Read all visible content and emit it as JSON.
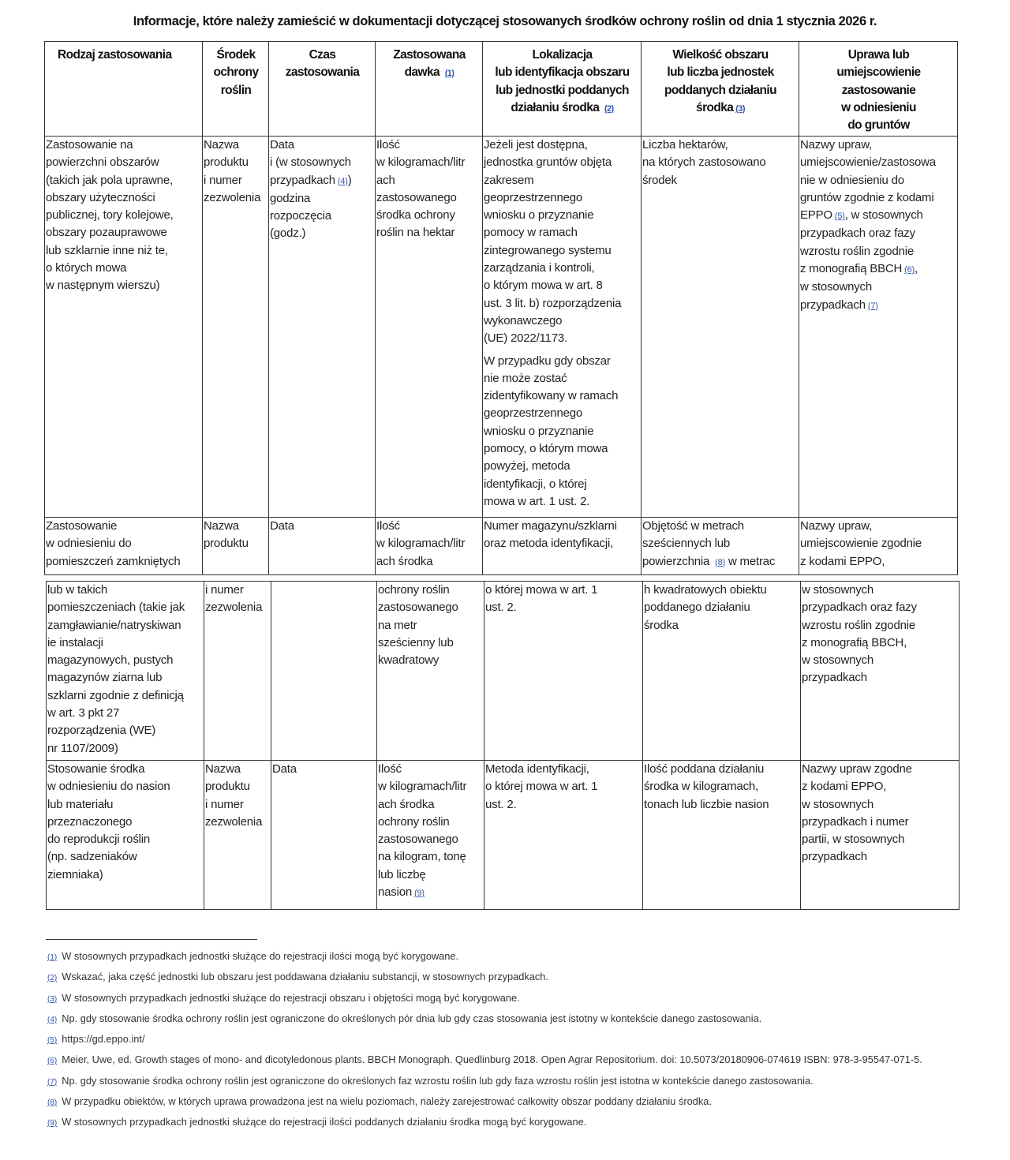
{
  "title": "Informacje, które należy zamieścić w dokumentacji dotyczącej stosowanych środków ochrony roślin od dnia 1 stycznia 2026 r.",
  "headers": [
    [
      [
        "Rodzaj zastosowania"
      ]
    ],
    [
      [
        "Środek\nochrony\nroślin"
      ]
    ],
    [
      [
        "Czas\nzastosowania"
      ]
    ],
    [
      [
        "Zastosowana\ndawka ",
        {
          "ref": "1"
        }
      ]
    ],
    [
      [
        "Lokalizacja\nlub identyfikacja obszaru\nlub jednostki poddanych\ndziałaniu środka ",
        {
          "ref": "2"
        }
      ]
    ],
    [
      [
        "Wielkość obszaru\nlub liczba jednostek\npoddanych działaniu\nśrodka",
        {
          "ref": "3"
        }
      ]
    ],
    [
      [
        "Uprawa lub\numiejscowienie\nzastosowanie\nw odniesieniu\ndo gruntów"
      ]
    ]
  ],
  "table1_rows": [
    [
      [
        [
          "Zastosowanie na\npowierzchni obszarów\n(takich jak pola uprawne,\nobszary użyteczności\npublicznej, tory kolejowe,\nobszary pozauprawowe\nlub szklarnie inne niż te,\no których mowa\nw następnym wierszu)"
        ]
      ],
      [
        [
          "Nazwa\nproduktu\ni numer\nzezwolenia"
        ]
      ],
      [
        [
          "Data\ni (w stosownych\nprzypadkach",
          {
            "ref": "4"
          },
          ")\ngodzina\nrozpoczęcia\n(godz.)"
        ]
      ],
      [
        [
          "Ilość\nw kilogramach/litr\nach\nzastosowanego\nśrodka ochrony\nroślin na hektar"
        ]
      ],
      [
        [
          "Jeżeli jest dostępna,\njednostka gruntów objęta\nzakresem\ngeoprzestrzennego\nwniosku o przyznanie\npomocy w ramach\nzintegrowanego systemu\nzarządzania i kontroli,\no którym mowa w art. 8\nust. 3 lit. b) rozporządzenia\nwykonawczego\n(UE) 2022/1173."
        ],
        [
          "W przypadku gdy obszar\nnie może zostać\nzidentyfikowany w ramach\ngeoprzestrzennego\nwniosku o przyznanie\npomocy, o którym mowa\npowyżej, metoda\nidentyfikacji, o której\nmowa w art. 1 ust. 2."
        ]
      ],
      [
        [
          "Liczba hektarów,\nna których zastosowano\nśrodek"
        ]
      ],
      [
        [
          "Nazwy upraw,\numiejscowienie/zastosowa\nnie w odniesieniu do\ngruntów zgodnie z kodami\nEPPO",
          {
            "ref": "5"
          },
          ", w stosownych\nprzypadkach oraz fazy\nwzrostu roślin zgodnie\nz monografią BBCH",
          {
            "ref": "6"
          },
          ",\nw stosownych\nprzypadkach",
          {
            "ref": "7"
          }
        ]
      ]
    ],
    [
      [
        [
          "Zastosowanie\nw odniesieniu do\npomieszczeń zamkniętych"
        ]
      ],
      [
        [
          "Nazwa\nproduktu"
        ]
      ],
      [
        [
          "Data"
        ]
      ],
      [
        [
          "Ilość\nw kilogramach/litr\nach środka"
        ]
      ],
      [
        [
          "Numer magazynu/szklarni\noraz metoda identyfikacji,"
        ]
      ],
      [
        [
          "Objętość w metrach\nsześciennych lub\npowierzchnia ",
          {
            "ref": "8"
          },
          " w metrac"
        ]
      ],
      [
        [
          "Nazwy upraw,\numiejscowienie zgodnie\nz kodami EPPO,"
        ]
      ]
    ]
  ],
  "table2_rows": [
    [
      [
        [
          "lub w takich\npomieszczeniach (takie jak\nzamgławianie/natryskiwan\nie instalacji\nmagazynowych, pustych\nmagazynów ziarna lub\nszklarni zgodnie z definicją\nw art. 3 pkt 27\nrozporządzenia (WE)\nnr 1107/2009)"
        ]
      ],
      [
        [
          "i numer\nzezwolenia"
        ]
      ],
      [
        [
          ""
        ]
      ],
      [
        [
          "ochrony roślin\nzastosowanego\nna metr\nsześcienny lub\nkwadratowy"
        ]
      ],
      [
        [
          "o której mowa w art. 1\nust. 2."
        ]
      ],
      [
        [
          "h kwadratowych obiektu\npoddanego działaniu\nśrodka"
        ]
      ],
      [
        [
          "w stosownych\nprzypadkach oraz fazy\nwzrostu roślin zgodnie\nz monografią BBCH,\nw stosownych\nprzypadkach"
        ]
      ]
    ],
    [
      [
        [
          "Stosowanie środka\nw odniesieniu do nasion\nlub materiału\nprzeznaczonego\ndo reprodukcji roślin\n(np. sadzeniaków\nziemniaka)"
        ]
      ],
      [
        [
          "Nazwa\nproduktu\ni numer\nzezwolenia"
        ]
      ],
      [
        [
          "Data"
        ]
      ],
      [
        [
          "Ilość\nw kilogramach/litr\nach środka\nochrony roślin\nzastosowanego\nna kilogram, tonę\nlub liczbę\nnasion",
          {
            "ref": "9"
          }
        ]
      ],
      [
        [
          "Metoda identyfikacji,\no której mowa w art. 1\nust. 2."
        ]
      ],
      [
        [
          "Ilość poddana działaniu\nśrodka w kilogramach,\ntonach lub liczbie nasion"
        ]
      ],
      [
        [
          "Nazwy upraw zgodne\nz kodami EPPO,\nw stosownych\nprzypadkach i numer\npartii, w stosownych\nprzypadkach"
        ]
      ]
    ]
  ],
  "footnotes": [
    {
      "ref": "1",
      "text": "W stosownych przypadkach jednostki służące do rejestracji ilości mogą być korygowane."
    },
    {
      "ref": "2",
      "text": "Wskazać, jaka część jednostki lub obszaru jest poddawana działaniu substancji, w stosownych przypadkach."
    },
    {
      "ref": "3",
      "text": "W stosownych przypadkach jednostki służące do rejestracji obszaru i objętości mogą być korygowane."
    },
    {
      "ref": "4",
      "text": "Np. gdy stosowanie środka ochrony roślin jest ograniczone do określonych pór dnia lub gdy czas stosowania jest istotny w kontekście danego zastosowania."
    },
    {
      "ref": "5",
      "text": "https://gd.eppo.int/"
    },
    {
      "ref": "6",
      "text": "Meier, Uwe, ed. Growth stages of mono- and dicotyledonous plants. BBCH Monograph. Quedlinburg 2018. Open Agrar Repositorium. doi: 10.5073/20180906-074619 ISBN: 978-3-95547-071-5."
    },
    {
      "ref": "7",
      "text": "Np. gdy stosowanie środka ochrony roślin jest ograniczone do określonych faz wzrostu roślin lub gdy faza wzrostu roślin jest istotna w kontekście danego zastosowania."
    },
    {
      "ref": "8",
      "text": "W przypadku obiektów, w których uprawa prowadzona jest na wielu poziomach, należy zarejestrować całkowity obszar poddany działaniu środka."
    },
    {
      "ref": "9",
      "text": "W stosownych przypadkach jednostki służące do rejestracji ilości poddanych działaniu środka mogą być korygowane."
    }
  ],
  "colors": {
    "link": "#3355aa",
    "border": "#333333"
  }
}
